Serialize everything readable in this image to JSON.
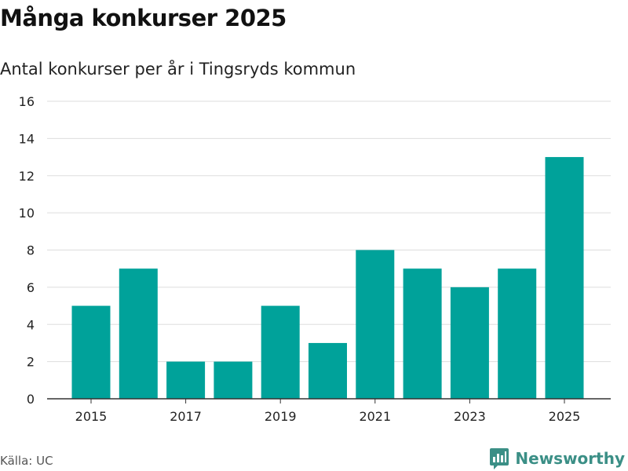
{
  "header": {
    "title": "Många konkurser 2025",
    "subtitle": "Antal konkurser per år i Tingsryds kommun"
  },
  "footer": {
    "source": "Källa: UC",
    "brand": "Newsworthy",
    "brand_color": "#3b8f86",
    "brand_icon": "bar-chart-icon"
  },
  "chart_data": {
    "type": "bar",
    "title": "Många konkurser 2025",
    "subtitle": "Antal konkurser per år i Tingsryds kommun",
    "xlabel": "",
    "ylabel": "",
    "categories": [
      "2015",
      "2016",
      "2017",
      "2018",
      "2019",
      "2020",
      "2021",
      "2022",
      "2023",
      "2024",
      "2025"
    ],
    "values": [
      5,
      7,
      2,
      2,
      5,
      3,
      8,
      7,
      6,
      7,
      13
    ],
    "x_tick_labels": [
      "2015",
      "2017",
      "2019",
      "2021",
      "2023",
      "2025"
    ],
    "y_ticks": [
      0,
      2,
      4,
      6,
      8,
      10,
      12,
      14,
      16
    ],
    "ylim": [
      0,
      16
    ],
    "grid": true,
    "bar_color": "#00a29a"
  }
}
